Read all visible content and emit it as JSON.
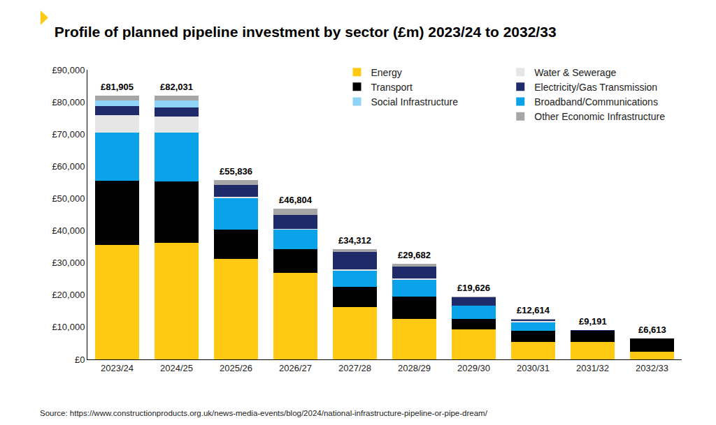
{
  "chart_data": {
    "type": "bar",
    "title": "Profile of planned pipeline investment by sector (£m) 2023/24 to 2032/33",
    "source": "Source: https://www.constructionproducts.org.uk/news-media-events/blog/2024/national-infrastructure-pipeline-or-pipe-dream/",
    "categories": [
      "2023/24",
      "2024/25",
      "2025/26",
      "2026/27",
      "2027/28",
      "2028/29",
      "2029/30",
      "2030/31",
      "2031/32",
      "2032/33"
    ],
    "stacked": true,
    "series": [
      {
        "name": "Energy",
        "color": "#ffc914",
        "values": [
          35500,
          36300,
          31200,
          27000,
          16200,
          12500,
          9300,
          5500,
          5500,
          2400
        ]
      },
      {
        "name": "Transport",
        "color": "#000000",
        "values": [
          20000,
          18900,
          9100,
          7300,
          6400,
          7000,
          3200,
          3300,
          3500,
          4200
        ]
      },
      {
        "name": "Broadband/Communications",
        "color": "#0aa2e8",
        "values": [
          15000,
          15300,
          9900,
          6000,
          5000,
          5300,
          4300,
          2800,
          0,
          0
        ]
      },
      {
        "name": "Water & Sewerage",
        "color": "#e6e6e6",
        "values": [
          5500,
          5000,
          300,
          300,
          300,
          300,
          0,
          300,
          0,
          0
        ]
      },
      {
        "name": "Electricity/Gas Transmission",
        "color": "#1f2a6b",
        "values": [
          2800,
          2800,
          3800,
          4400,
          5500,
          3800,
          2600,
          400,
          100,
          0
        ]
      },
      {
        "name": "Social Infrastructure",
        "color": "#8fd4f6",
        "values": [
          1700,
          2100,
          0,
          0,
          0,
          0,
          0,
          0,
          0,
          0
        ]
      },
      {
        "name": "Other Economic Infrastructure",
        "color": "#a6a6a6",
        "values": [
          1405,
          1631,
          1536,
          1804,
          912,
          782,
          226,
          314,
          91,
          13
        ]
      }
    ],
    "totals": [
      81905,
      82031,
      55836,
      46804,
      34312,
      29682,
      19626,
      12614,
      9191,
      6613
    ],
    "total_labels": [
      "£81,905",
      "£82,031",
      "£55,836",
      "£46,804",
      "£34,312",
      "£29,682",
      "£19,626",
      "£12,614",
      "£9,191",
      "£6,613"
    ],
    "ylim": [
      0,
      90000
    ],
    "yticks": [
      {
        "value": 0,
        "label": "£0"
      },
      {
        "value": 10000,
        "label": "£10,000"
      },
      {
        "value": 20000,
        "label": "£20,000"
      },
      {
        "value": 30000,
        "label": "£30,000"
      },
      {
        "value": 40000,
        "label": "£40,000"
      },
      {
        "value": 50000,
        "label": "£50,000"
      },
      {
        "value": 60000,
        "label": "£60,000"
      },
      {
        "value": 70000,
        "label": "£70,000"
      },
      {
        "value": 80000,
        "label": "£80,000"
      },
      {
        "value": 90000,
        "label": "£90,000"
      }
    ],
    "grid": false,
    "legend": "top right"
  }
}
